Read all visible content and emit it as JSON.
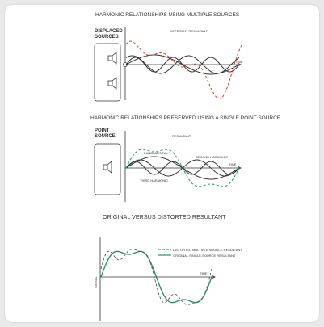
{
  "panel1": {
    "title": "HARMONIC RELATIONSHIPS USING MULTIPLE SOURCES",
    "side_label_1": "DISPLACED",
    "side_label_2": "SOURCES",
    "resultant_label": "DIFFERENT RESULTANT",
    "time_label": "TIME"
  },
  "panel2": {
    "title": "HARMONIC RELATIONSHIPS PRESERVED USING A SINGLE POINT SOURCE",
    "side_label_1": "POINT",
    "side_label_2": "SOURCE",
    "resultant_label": "RESULTANT",
    "fundamental_label": "FUNDAMENTAL",
    "second_label": "SECOND HARMONIC",
    "third_label": "THIRD HARMONIC",
    "time_label": "TIME"
  },
  "panel3": {
    "title": "ORIGINAL VERSUS DISTORTED RESULTANT",
    "legend_distorted": "DISTORTED MULTIPLE SOURCE RESULTANT",
    "legend_original": "ORIGINAL SINGLE-SOURCE RESULTANT",
    "time_label": "TIME",
    "signal_label": "SIGNAL"
  },
  "colors": {
    "red": "#e0342f",
    "green": "#2f8f6a",
    "line": "#333333"
  }
}
